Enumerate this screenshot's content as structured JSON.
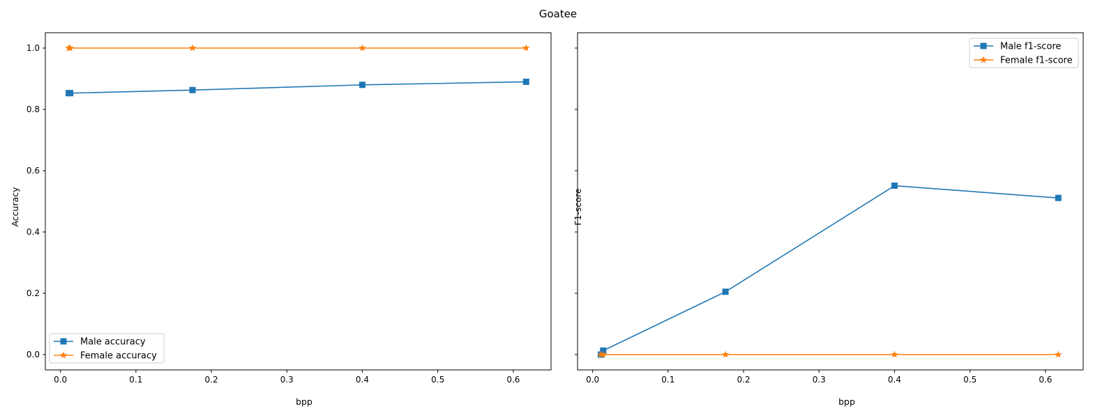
{
  "figure": {
    "title": "Goatee"
  },
  "chart_data": [
    {
      "type": "line",
      "title": "",
      "xlabel": "bpp",
      "ylabel": "Accuracy",
      "xlim": [
        -0.02,
        0.65
      ],
      "ylim": [
        -0.05,
        1.05
      ],
      "xticks": [
        0.0,
        0.1,
        0.2,
        0.3,
        0.4,
        0.5,
        0.6
      ],
      "xtick_labels": [
        "0.0",
        "0.1",
        "0.2",
        "0.3",
        "0.4",
        "0.5",
        "0.6"
      ],
      "yticks": [
        0.0,
        0.2,
        0.4,
        0.6,
        0.8,
        1.0
      ],
      "ytick_labels": [
        "0.0",
        "0.2",
        "0.4",
        "0.6",
        "0.8",
        "1.0"
      ],
      "show_ytick_labels": true,
      "grid": false,
      "legend_position": "lower-left",
      "series": [
        {
          "name": "Male accuracy",
          "color": "#1f77b4",
          "marker": "square",
          "x": [
            0.011,
            0.013,
            0.175,
            0.4,
            0.617
          ],
          "y": [
            0.853,
            0.853,
            0.863,
            0.88,
            0.89
          ]
        },
        {
          "name": "Female accuracy",
          "color": "#ff7f0e",
          "marker": "star",
          "x": [
            0.011,
            0.013,
            0.175,
            0.4,
            0.617
          ],
          "y": [
            1.0,
            1.0,
            1.0,
            1.0,
            1.0
          ]
        }
      ]
    },
    {
      "type": "line",
      "title": "",
      "xlabel": "bpp",
      "ylabel": "F1-score",
      "xlim": [
        -0.02,
        0.65
      ],
      "ylim": [
        -0.05,
        1.05
      ],
      "xticks": [
        0.0,
        0.1,
        0.2,
        0.3,
        0.4,
        0.5,
        0.6
      ],
      "xtick_labels": [
        "0.0",
        "0.1",
        "0.2",
        "0.3",
        "0.4",
        "0.5",
        "0.6"
      ],
      "yticks": [
        0.0,
        0.2,
        0.4,
        0.6,
        0.8,
        1.0
      ],
      "ytick_labels": [
        "0.0",
        "0.2",
        "0.4",
        "0.6",
        "0.8",
        "1.0"
      ],
      "show_ytick_labels": false,
      "grid": false,
      "legend_position": "upper-right",
      "series": [
        {
          "name": "Male f1-score",
          "color": "#1f77b4",
          "marker": "square",
          "x": [
            0.011,
            0.014,
            0.176,
            0.4,
            0.617
          ],
          "y": [
            0.0,
            0.013,
            0.205,
            0.551,
            0.511
          ]
        },
        {
          "name": "Female f1-score",
          "color": "#ff7f0e",
          "marker": "star",
          "x": [
            0.011,
            0.014,
            0.176,
            0.4,
            0.617
          ],
          "y": [
            0.0,
            0.0,
            0.0,
            0.0,
            0.0
          ]
        }
      ]
    }
  ]
}
